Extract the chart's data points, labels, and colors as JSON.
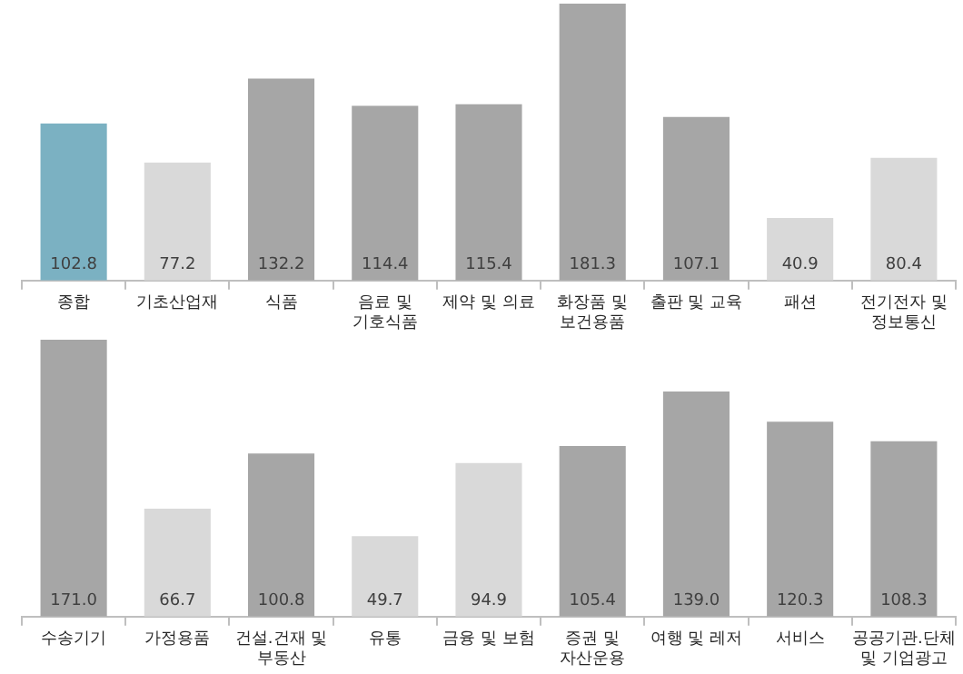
{
  "chart_data": [
    {
      "type": "bar",
      "categories": [
        "종합",
        "기초산업재",
        "식품",
        "음료 및 기호식품",
        "제약 및 의료",
        "화장품 및 보건용품",
        "출판 및 교육",
        "패션",
        "전기전자 및 정보통신"
      ],
      "values": [
        102.8,
        77.2,
        132.2,
        114.4,
        115.4,
        181.3,
        107.1,
        40.9,
        80.4
      ],
      "value_labels": [
        "102.8",
        "77.2",
        "132.2",
        "114.4",
        "115.4",
        "181.3",
        "107.1",
        "40.9",
        "80.4"
      ],
      "colors": [
        "#7bb1c2",
        "#d9d9d9",
        "#a6a6a6",
        "#a6a6a6",
        "#a6a6a6",
        "#a6a6a6",
        "#a6a6a6",
        "#d9d9d9",
        "#d9d9d9"
      ]
    },
    {
      "type": "bar",
      "categories": [
        "수송기기",
        "가정용품",
        "건설.건재 및 부동산",
        "유통",
        "금융 및 보험",
        "증권 및 자산운용",
        "여행 및 레저",
        "서비스",
        "공공기관.단체 및 기업광고"
      ],
      "values": [
        171.0,
        66.7,
        100.8,
        49.7,
        94.9,
        105.4,
        139.0,
        120.3,
        108.3
      ],
      "value_labels": [
        "171.0",
        "66.7",
        "100.8",
        "49.7",
        "94.9",
        "105.4",
        "139.0",
        "120.3",
        "108.3"
      ],
      "colors": [
        "#a6a6a6",
        "#d9d9d9",
        "#a6a6a6",
        "#d9d9d9",
        "#d9d9d9",
        "#a6a6a6",
        "#a6a6a6",
        "#a6a6a6",
        "#a6a6a6"
      ]
    }
  ]
}
